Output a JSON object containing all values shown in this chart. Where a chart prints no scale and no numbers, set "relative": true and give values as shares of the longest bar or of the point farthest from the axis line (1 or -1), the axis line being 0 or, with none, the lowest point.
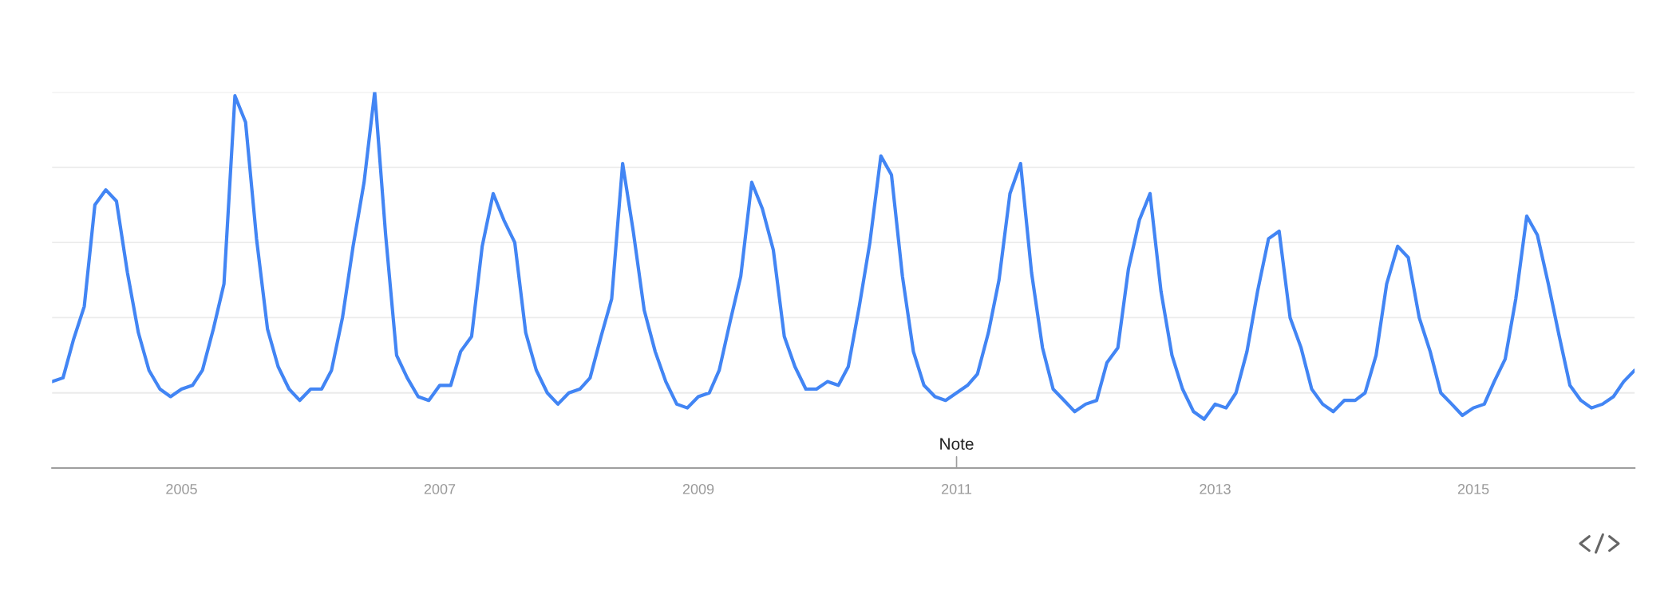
{
  "chart_data": {
    "type": "line",
    "relative": true,
    "x": [
      "2004-01",
      "2004-02",
      "2004-03",
      "2004-04",
      "2004-05",
      "2004-06",
      "2004-07",
      "2004-08",
      "2004-09",
      "2004-10",
      "2004-11",
      "2004-12",
      "2005-01",
      "2005-02",
      "2005-03",
      "2005-04",
      "2005-05",
      "2005-06",
      "2005-07",
      "2005-08",
      "2005-09",
      "2005-10",
      "2005-11",
      "2005-12",
      "2006-01",
      "2006-02",
      "2006-03",
      "2006-04",
      "2006-05",
      "2006-06",
      "2006-07",
      "2006-08",
      "2006-09",
      "2006-10",
      "2006-11",
      "2006-12",
      "2007-01",
      "2007-02",
      "2007-03",
      "2007-04",
      "2007-05",
      "2007-06",
      "2007-07",
      "2007-08",
      "2007-09",
      "2007-10",
      "2007-11",
      "2007-12",
      "2008-01",
      "2008-02",
      "2008-03",
      "2008-04",
      "2008-05",
      "2008-06",
      "2008-07",
      "2008-08",
      "2008-09",
      "2008-10",
      "2008-11",
      "2008-12",
      "2009-01",
      "2009-02",
      "2009-03",
      "2009-04",
      "2009-05",
      "2009-06",
      "2009-07",
      "2009-08",
      "2009-09",
      "2009-10",
      "2009-11",
      "2009-12",
      "2010-01",
      "2010-02",
      "2010-03",
      "2010-04",
      "2010-05",
      "2010-06",
      "2010-07",
      "2010-08",
      "2010-09",
      "2010-10",
      "2010-11",
      "2010-12",
      "2011-01",
      "2011-02",
      "2011-03",
      "2011-04",
      "2011-05",
      "2011-06",
      "2011-07",
      "2011-08",
      "2011-09",
      "2011-10",
      "2011-11",
      "2011-12",
      "2012-01",
      "2012-02",
      "2012-03",
      "2012-04",
      "2012-05",
      "2012-06",
      "2012-07",
      "2012-08",
      "2012-09",
      "2012-10",
      "2012-11",
      "2012-12",
      "2013-01",
      "2013-02",
      "2013-03",
      "2013-04",
      "2013-05",
      "2013-06",
      "2013-07",
      "2013-08",
      "2013-09",
      "2013-10",
      "2013-11",
      "2013-12",
      "2014-01",
      "2014-02",
      "2014-03",
      "2014-04",
      "2014-05",
      "2014-06",
      "2014-07",
      "2014-08",
      "2014-09",
      "2014-10",
      "2014-11",
      "2014-12",
      "2015-01",
      "2015-02",
      "2015-03",
      "2015-04",
      "2015-05",
      "2015-06",
      "2015-07",
      "2015-08",
      "2015-09",
      "2015-10",
      "2015-11",
      "2015-12",
      "2016-01",
      "2016-02",
      "2016-03",
      "2016-04"
    ],
    "series": [
      {
        "color": "#4285f4",
        "values": [
          0.23,
          0.24,
          0.34,
          0.43,
          0.7,
          0.74,
          0.71,
          0.52,
          0.36,
          0.26,
          0.21,
          0.19,
          0.21,
          0.22,
          0.26,
          0.37,
          0.49,
          0.99,
          0.92,
          0.61,
          0.37,
          0.27,
          0.21,
          0.18,
          0.21,
          0.21,
          0.26,
          0.4,
          0.59,
          0.76,
          1.0,
          0.62,
          0.3,
          0.24,
          0.19,
          0.18,
          0.22,
          0.22,
          0.31,
          0.35,
          0.59,
          0.73,
          0.66,
          0.6,
          0.36,
          0.26,
          0.2,
          0.17,
          0.2,
          0.21,
          0.24,
          0.35,
          0.45,
          0.81,
          0.63,
          0.42,
          0.31,
          0.23,
          0.17,
          0.16,
          0.19,
          0.2,
          0.26,
          0.39,
          0.51,
          0.76,
          0.69,
          0.58,
          0.35,
          0.27,
          0.21,
          0.21,
          0.23,
          0.22,
          0.27,
          0.43,
          0.6,
          0.83,
          0.78,
          0.51,
          0.31,
          0.22,
          0.19,
          0.18,
          0.2,
          0.22,
          0.25,
          0.36,
          0.5,
          0.73,
          0.81,
          0.52,
          0.32,
          0.21,
          0.18,
          0.15,
          0.17,
          0.18,
          0.28,
          0.32,
          0.53,
          0.66,
          0.73,
          0.47,
          0.3,
          0.21,
          0.15,
          0.13,
          0.17,
          0.16,
          0.2,
          0.31,
          0.47,
          0.61,
          0.63,
          0.4,
          0.32,
          0.21,
          0.17,
          0.15,
          0.18,
          0.18,
          0.2,
          0.3,
          0.49,
          0.59,
          0.56,
          0.4,
          0.31,
          0.2,
          0.17,
          0.14,
          0.16,
          0.17,
          0.23,
          0.29,
          0.45,
          0.67,
          0.62,
          0.49,
          0.35,
          0.22,
          0.18,
          0.16,
          0.17,
          0.19,
          0.23,
          0.26
        ]
      }
    ],
    "xlim": [
      "2004-01",
      "2016-04"
    ],
    "xticks": [
      "2005",
      "2007",
      "2009",
      "2011",
      "2013",
      "2015"
    ],
    "grid": "y",
    "legend": false,
    "marker": "none",
    "line_style": "solid",
    "ref_lines": [
      {
        "axis": "x",
        "value": "2011-01",
        "label": "Note",
        "color": "#9e9e9e"
      }
    ]
  }
}
